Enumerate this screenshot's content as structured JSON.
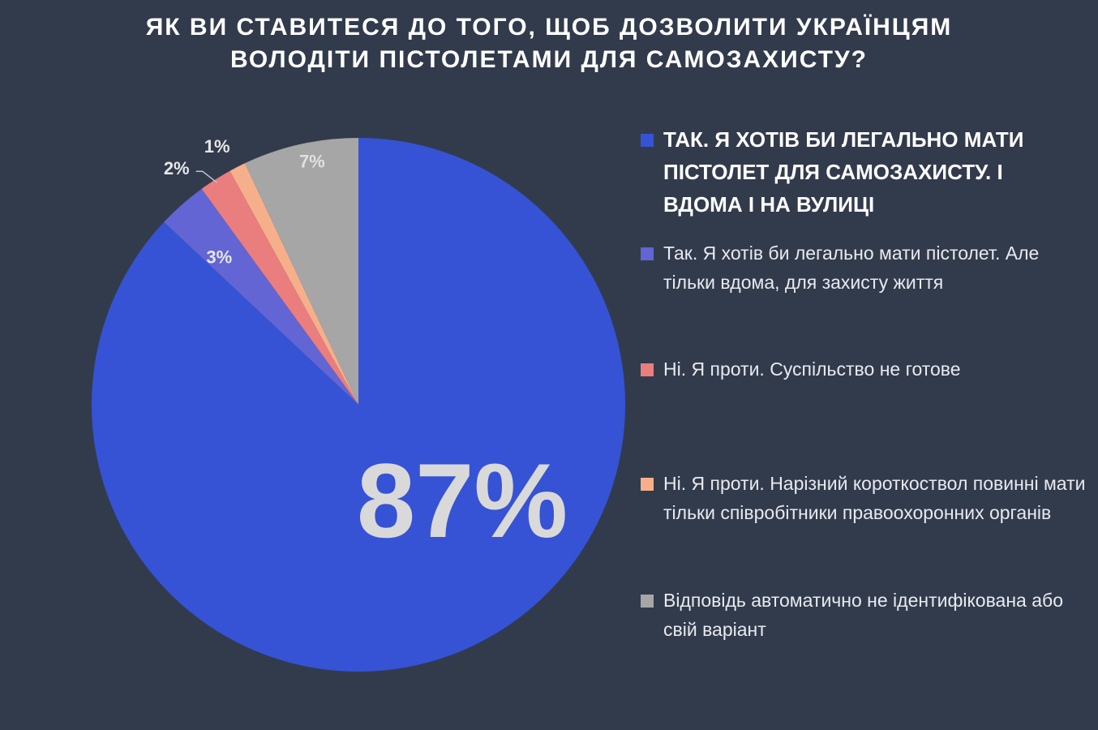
{
  "chart_data": {
    "type": "pie",
    "title_lines": [
      "ЯК ВИ СТАВИТЕСЯ ДО ТОГО, ЩОБ ДОЗВОЛИТИ УКРАЇНЦЯМ",
      "ВОЛОДІТИ ПІСТОЛЕТАМИ ДЛЯ САМОЗАХИСТУ?"
    ],
    "start_angle_deg": 0,
    "direction": "clockwise",
    "slices": [
      {
        "label": "ТАК. Я ХОТІВ БИ ЛЕГАЛЬНО МАТИ ПІСТОЛЕТ ДЛЯ САМОЗАХИСТУ. І ВДОМА І НА ВУЛИЦІ",
        "value": 87,
        "display": "87%",
        "color": "#3553d4"
      },
      {
        "label": "Так. Я хотів би легально мати пістолет. Але тільки вдома, для захисту життя",
        "value": 3,
        "display": "3%",
        "color": "#6265d3"
      },
      {
        "label": "Ні. Я проти. Суспільство не готове",
        "value": 2,
        "display": "2%",
        "color": "#ea7d7e"
      },
      {
        "label": "Ні. Я проти. Нарізний короткоствол повинні мати тільки співробітники правоохоронних органів",
        "value": 1,
        "display": "1%",
        "color": "#f5b08b"
      },
      {
        "label": "Відповідь автоматично не ідентифікована або свій варіант",
        "value": 7,
        "display": "7%",
        "color": "#a6a6a6"
      }
    ]
  },
  "colors": {
    "background": "#323b4c",
    "pie_label": "#d9d9d9",
    "small_label": "#e6e6e6"
  }
}
